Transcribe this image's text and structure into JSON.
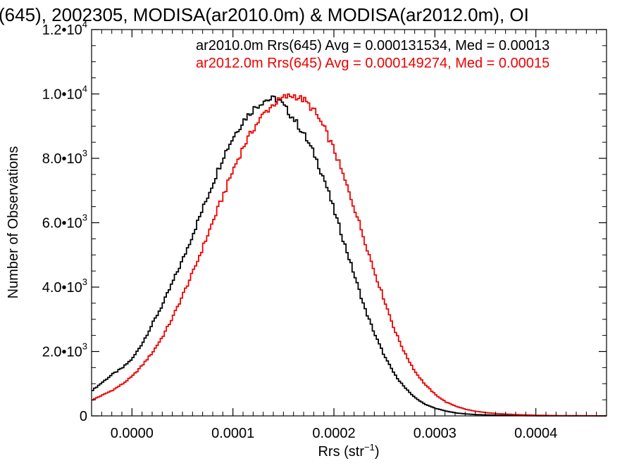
{
  "chart_data": {
    "type": "histogram",
    "title": "(645), 2002305, MODISA(ar2010.0m) & MODISA(ar2012.0m), OI",
    "xlabel": "Rrs (str",
    "xlabel_sup": "−1",
    "xlabel_close": ")",
    "ylabel": "Number of Observations",
    "xlim": [
      -4e-05,
      0.00047
    ],
    "ylim": [
      0,
      12000
    ],
    "grid": false,
    "legend_position": "top-right",
    "x_ticks": [
      {
        "value": 0.0,
        "label": "0.0000"
      },
      {
        "value": 0.0001,
        "label": "0.0001"
      },
      {
        "value": 0.0002,
        "label": "0.0002"
      },
      {
        "value": 0.0003,
        "label": "0.0003"
      },
      {
        "value": 0.0004,
        "label": "0.0004"
      }
    ],
    "y_ticks": [
      {
        "value": 0,
        "mant": "0",
        "exp": ""
      },
      {
        "value": 2000,
        "mant": "2.0•10",
        "exp": "3"
      },
      {
        "value": 4000,
        "mant": "4.0•10",
        "exp": "3"
      },
      {
        "value": 6000,
        "mant": "6.0•10",
        "exp": "3"
      },
      {
        "value": 8000,
        "mant": "8.0•10",
        "exp": "3"
      },
      {
        "value": 10000,
        "mant": "1.0•10",
        "exp": "4"
      },
      {
        "value": 12000,
        "mant": "1.2•10",
        "exp": "4"
      }
    ],
    "series": [
      {
        "name": "ar2010.0m",
        "stats_text": "ar2010.0m Rrs(645) Avg = 0.000131534, Med = 0.00013",
        "color": "#000000",
        "x": [
          -4e-05,
          -3e-05,
          -2e-05,
          -1e-05,
          0.0,
          1e-05,
          2e-05,
          3e-05,
          4e-05,
          5e-05,
          6e-05,
          7e-05,
          8e-05,
          9e-05,
          0.0001,
          0.00011,
          0.00012,
          0.00013,
          0.00014,
          0.000145,
          0.00015,
          0.00016,
          0.00017,
          0.00018,
          0.00019,
          0.0002,
          0.00021,
          0.00022,
          0.00023,
          0.00024,
          0.00025,
          0.00026,
          0.00027,
          0.00028,
          0.00029,
          0.0003,
          0.00031,
          0.00032,
          0.00033,
          0.00034,
          0.00036,
          0.00038,
          0.0004,
          0.00042,
          0.00045,
          0.00047
        ],
        "y": [
          800,
          1050,
          1300,
          1500,
          1800,
          2300,
          2900,
          3500,
          4200,
          4900,
          5700,
          6500,
          7300,
          8100,
          8700,
          9200,
          9550,
          9800,
          9850,
          9800,
          9600,
          9200,
          8700,
          8100,
          7300,
          6300,
          5300,
          4300,
          3300,
          2500,
          1800,
          1250,
          850,
          550,
          350,
          230,
          150,
          90,
          60,
          40,
          20,
          10,
          5,
          3,
          2,
          0
        ]
      },
      {
        "name": "ar2012.0m",
        "stats_text": "ar2012.0m Rrs(645) Avg = 0.000149274, Med = 0.00015",
        "color": "#ee0000",
        "x": [
          -4e-05,
          -3e-05,
          -2e-05,
          -1e-05,
          0.0,
          1e-05,
          2e-05,
          3e-05,
          4e-05,
          5e-05,
          6e-05,
          7e-05,
          8e-05,
          9e-05,
          0.0001,
          0.00011,
          0.00012,
          0.00013,
          0.00014,
          0.00015,
          0.00016,
          0.00017,
          0.00018,
          0.00019,
          0.0002,
          0.00021,
          0.00022,
          0.00023,
          0.00024,
          0.00025,
          0.00026,
          0.00027,
          0.00028,
          0.00029,
          0.0003,
          0.00031,
          0.00032,
          0.00033,
          0.00034,
          0.00035,
          0.00036,
          0.00038,
          0.0004,
          0.00042,
          0.00045,
          0.00047
        ],
        "y": [
          500,
          650,
          800,
          1000,
          1250,
          1600,
          2000,
          2500,
          3100,
          3800,
          4500,
          5300,
          6100,
          6900,
          7700,
          8400,
          8950,
          9400,
          9700,
          9900,
          9950,
          9800,
          9450,
          8900,
          8200,
          7300,
          6400,
          5400,
          4400,
          3500,
          2600,
          1900,
          1350,
          950,
          650,
          430,
          300,
          200,
          140,
          100,
          70,
          40,
          20,
          10,
          5,
          0
        ]
      }
    ]
  }
}
